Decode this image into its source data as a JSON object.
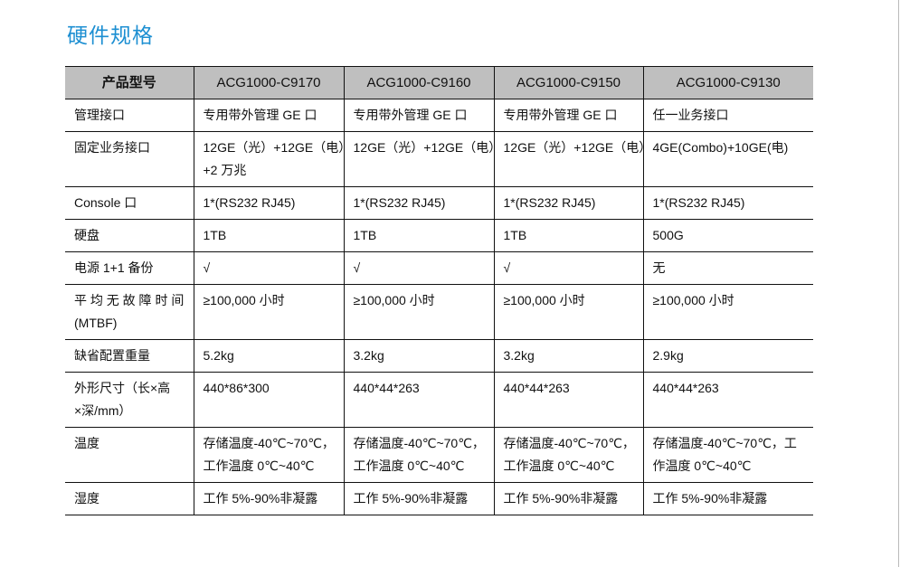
{
  "title": "硬件规格",
  "table": {
    "headers": [
      "产品型号",
      "ACG1000-C9170",
      "ACG1000-C9160",
      "ACG1000-C9150",
      "ACG1000-C9130"
    ],
    "rows": [
      {
        "label": [
          "管理接口"
        ],
        "cells": [
          [
            "专用带外管理 GE 口"
          ],
          [
            "专用带外管理 GE 口"
          ],
          [
            "专用带外管理 GE 口"
          ],
          [
            "任一业务接口"
          ]
        ]
      },
      {
        "label": [
          "固定业务接口"
        ],
        "cells": [
          [
            "12GE（光）+12GE（电）",
            "+2 万兆"
          ],
          [
            "12GE（光）+12GE（电）"
          ],
          [
            "12GE（光）+12GE（电）"
          ],
          [
            "4GE(Combo)+10GE(电)"
          ]
        ]
      },
      {
        "label": [
          "Console 口"
        ],
        "cells": [
          [
            "1*(RS232 RJ45)"
          ],
          [
            "1*(RS232 RJ45)"
          ],
          [
            "1*(RS232 RJ45)"
          ],
          [
            "1*(RS232 RJ45)"
          ]
        ]
      },
      {
        "label": [
          "硬盘"
        ],
        "cells": [
          [
            "1TB"
          ],
          [
            "1TB"
          ],
          [
            "1TB"
          ],
          [
            "500G"
          ]
        ]
      },
      {
        "label": [
          "电源 1+1 备份"
        ],
        "cells": [
          [
            "√"
          ],
          [
            "√"
          ],
          [
            "√"
          ],
          [
            "无"
          ]
        ]
      },
      {
        "label": [
          "平 均 无 故 障 时 间",
          "(MTBF)"
        ],
        "cells": [
          [
            "≥100,000 小时"
          ],
          [
            "≥100,000 小时"
          ],
          [
            "≥100,000 小时"
          ],
          [
            "≥100,000 小时"
          ]
        ]
      },
      {
        "label": [
          "缺省配置重量"
        ],
        "cells": [
          [
            "5.2kg"
          ],
          [
            "3.2kg"
          ],
          [
            "3.2kg"
          ],
          [
            "2.9kg"
          ]
        ]
      },
      {
        "label": [
          "外形尺寸（长×高",
          "×深/mm）"
        ],
        "cells": [
          [
            "440*86*300"
          ],
          [
            "440*44*263"
          ],
          [
            "440*44*263"
          ],
          [
            "440*44*263"
          ]
        ]
      },
      {
        "label": [
          "温度"
        ],
        "cells": [
          [
            "存储温度-40℃~70℃，",
            "工作温度 0℃~40℃"
          ],
          [
            "存储温度-40℃~70℃，",
            "工作温度 0℃~40℃"
          ],
          [
            "存储温度-40℃~70℃，",
            "工作温度 0℃~40℃"
          ],
          [
            "存储温度-40℃~70℃，工",
            "作温度 0℃~40℃"
          ]
        ]
      },
      {
        "label": [
          "湿度"
        ],
        "cells": [
          [
            "工作 5%-90%非凝露"
          ],
          [
            "工作 5%-90%非凝露"
          ],
          [
            "工作 5%-90%非凝露"
          ],
          [
            "工作 5%-90%非凝露"
          ]
        ]
      }
    ]
  },
  "colors": {
    "title": "#1d8fd2",
    "header_bg": "#bfbfbf"
  }
}
